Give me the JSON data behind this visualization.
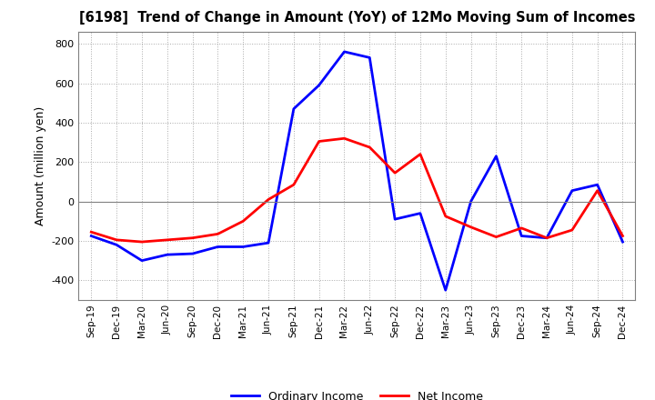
{
  "title": "[6198]  Trend of Change in Amount (YoY) of 12Mo Moving Sum of Incomes",
  "ylabel": "Amount (million yen)",
  "ylim": [
    -500,
    860
  ],
  "yticks": [
    -400,
    -200,
    0,
    200,
    400,
    600,
    800
  ],
  "x_labels": [
    "Sep-19",
    "Dec-19",
    "Mar-20",
    "Jun-20",
    "Sep-20",
    "Dec-20",
    "Mar-21",
    "Jun-21",
    "Sep-21",
    "Dec-21",
    "Mar-22",
    "Jun-22",
    "Sep-22",
    "Dec-22",
    "Mar-23",
    "Jun-23",
    "Sep-23",
    "Dec-23",
    "Mar-24",
    "Jun-24",
    "Sep-24",
    "Dec-24"
  ],
  "ordinary_income": [
    -175,
    -220,
    -300,
    -270,
    -265,
    -230,
    -230,
    -210,
    470,
    590,
    760,
    730,
    -90,
    -60,
    -450,
    0,
    230,
    -175,
    -185,
    55,
    85,
    -205
  ],
  "net_income": [
    -155,
    -195,
    -205,
    -195,
    -185,
    -165,
    -100,
    10,
    85,
    305,
    320,
    275,
    145,
    240,
    -75,
    -130,
    -180,
    -135,
    -185,
    -145,
    55,
    -175
  ],
  "ordinary_income_color": "#0000FF",
  "net_income_color": "#FF0000",
  "background_color": "#FFFFFF",
  "legend_ordinary": "Ordinary Income",
  "legend_net": "Net Income",
  "line_width": 2.0
}
